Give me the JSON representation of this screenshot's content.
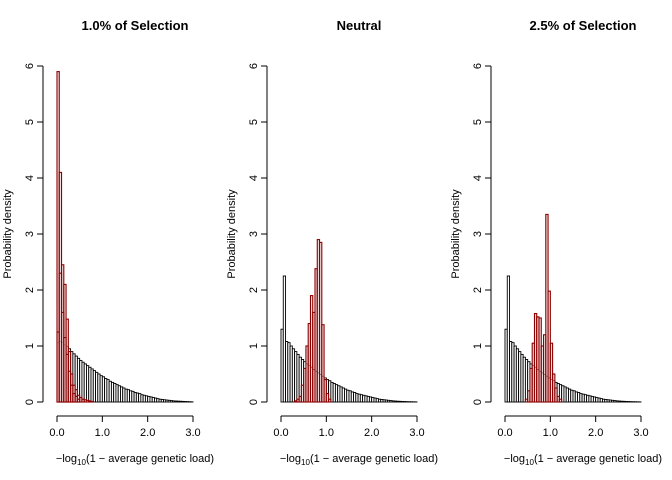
{
  "chart_data": [
    {
      "type": "bar",
      "title": "1.0% of Selection",
      "xlabel_pre": "−log",
      "xlabel_sub": "10",
      "xlabel_post": "(1 − average genetic load)",
      "ylabel": "Probability density",
      "xlim": [
        0,
        3
      ],
      "ylim": [
        0,
        6
      ],
      "xticks": [
        "0.0",
        "1.0",
        "2.0",
        "3.0"
      ],
      "yticks": [
        "0",
        "1",
        "2",
        "3",
        "4",
        "5",
        "6"
      ],
      "colors": {
        "base_fill": "#ffffff",
        "overlay_fill": "#e8c8c8",
        "stroke": "#000000",
        "dark": "#8b0000"
      },
      "series": [
        {
          "bin_width": 0.05,
          "x_start": 0,
          "values": [
            1.06,
            1.08,
            1.06,
            1.02,
            0.99,
            0.95,
            0.9,
            0.86,
            0.82,
            0.78,
            0.74,
            0.71,
            0.68,
            0.65,
            0.62,
            0.59,
            0.56,
            0.53,
            0.5,
            0.47,
            0.45,
            0.42,
            0.4,
            0.37,
            0.35,
            0.33,
            0.31,
            0.29,
            0.27,
            0.25,
            0.23,
            0.22,
            0.2,
            0.19,
            0.17,
            0.16,
            0.15,
            0.13,
            0.12,
            0.11,
            0.1,
            0.09,
            0.08,
            0.07,
            0.06,
            0.05,
            0.045,
            0.04,
            0.035,
            0.03,
            0.025,
            0.02,
            0.018,
            0.015,
            0.013,
            0.011,
            0.009,
            0.007,
            0.005,
            0.003
          ]
        },
        {
          "bin_width": 0.05,
          "x_start": 0,
          "values": [
            5.9,
            4.1,
            2.45,
            2.1,
            1.48,
            0.9,
            0.5,
            0.3,
            0.22,
            0.12,
            0.08,
            0.05,
            0.04,
            0.03,
            0.02,
            0.01
          ]
        },
        {
          "bin_width": 0.05,
          "x_start": 0,
          "values": [
            1.25,
            2.3,
            1.6,
            1.15,
            0.85,
            0.55,
            0.3,
            0.15,
            0.1,
            0.05
          ]
        }
      ]
    },
    {
      "type": "bar",
      "title": "Neutral",
      "xlabel_pre": "−log",
      "xlabel_sub": "10",
      "xlabel_post": "(1 − average genetic load)",
      "ylabel": "Probability density",
      "xlim": [
        0,
        3
      ],
      "ylim": [
        0,
        6
      ],
      "xticks": [
        "0.0",
        "1.0",
        "2.0",
        "3.0"
      ],
      "yticks": [
        "0",
        "1",
        "2",
        "3",
        "4",
        "5",
        "6"
      ],
      "colors": {
        "base_fill": "#ffffff",
        "overlay_fill": "#e8c8c8",
        "stroke": "#000000",
        "dark": "#8b0000"
      },
      "series": [
        {
          "bin_width": 0.05,
          "x_start": 0,
          "values": [
            1.3,
            2.25,
            1.08,
            1.06,
            1.0,
            0.95,
            0.9,
            0.85,
            0.8,
            0.76,
            0.72,
            0.68,
            0.65,
            0.62,
            0.58,
            0.55,
            0.52,
            0.49,
            0.46,
            0.43,
            0.4,
            0.38,
            0.35,
            0.33,
            0.31,
            0.29,
            0.27,
            0.25,
            0.23,
            0.21,
            0.2,
            0.18,
            0.17,
            0.15,
            0.14,
            0.13,
            0.12,
            0.11,
            0.1,
            0.09,
            0.08,
            0.07,
            0.06,
            0.05,
            0.045,
            0.04,
            0.035,
            0.03,
            0.025,
            0.02,
            0.017,
            0.014,
            0.012,
            0.01,
            0.008,
            0.006,
            0.005,
            0.004,
            0.003,
            0.002
          ]
        },
        {
          "bin_width": 0.05,
          "x_start": 0.3,
          "values": [
            0.02,
            0.05,
            0.1,
            0.3,
            0.6,
            1.0,
            1.4,
            1.9,
            1.6,
            2.38,
            2.9,
            2.85,
            1.38,
            0.4,
            0.15,
            0.05
          ]
        }
      ]
    },
    {
      "type": "bar",
      "title": "2.5% of Selection",
      "xlabel_pre": "−log",
      "xlabel_sub": "10",
      "xlabel_post": "(1 − average genetic load)",
      "ylabel": "Probability density",
      "xlim": [
        0,
        3
      ],
      "ylim": [
        0,
        6
      ],
      "xticks": [
        "0.0",
        "1.0",
        "2.0",
        "3.0"
      ],
      "yticks": [
        "0",
        "1",
        "2",
        "3",
        "4",
        "5",
        "6"
      ],
      "colors": {
        "base_fill": "#ffffff",
        "overlay_fill": "#e8c8c8",
        "stroke": "#000000",
        "dark": "#8b0000"
      },
      "series": [
        {
          "bin_width": 0.05,
          "x_start": 0,
          "values": [
            1.3,
            2.25,
            1.08,
            1.06,
            1.0,
            0.95,
            0.9,
            0.85,
            0.8,
            0.76,
            0.72,
            0.68,
            0.65,
            0.62,
            0.58,
            0.55,
            0.52,
            0.49,
            0.46,
            0.43,
            0.4,
            0.38,
            0.35,
            0.33,
            0.31,
            0.29,
            0.27,
            0.25,
            0.23,
            0.21,
            0.2,
            0.18,
            0.17,
            0.15,
            0.14,
            0.13,
            0.12,
            0.11,
            0.1,
            0.09,
            0.08,
            0.07,
            0.06,
            0.05,
            0.045,
            0.04,
            0.035,
            0.03,
            0.025,
            0.02,
            0.017,
            0.014,
            0.012,
            0.01,
            0.008,
            0.006,
            0.005,
            0.004,
            0.003,
            0.002
          ]
        },
        {
          "bin_width": 0.05,
          "x_start": 0.45,
          "values": [
            0.05,
            0.2,
            0.6,
            1.05,
            1.58,
            1.52,
            1.5,
            1.0,
            1.2,
            3.35,
            1.98,
            1.05,
            0.5,
            0.25,
            0.1,
            0.05
          ]
        }
      ]
    }
  ]
}
